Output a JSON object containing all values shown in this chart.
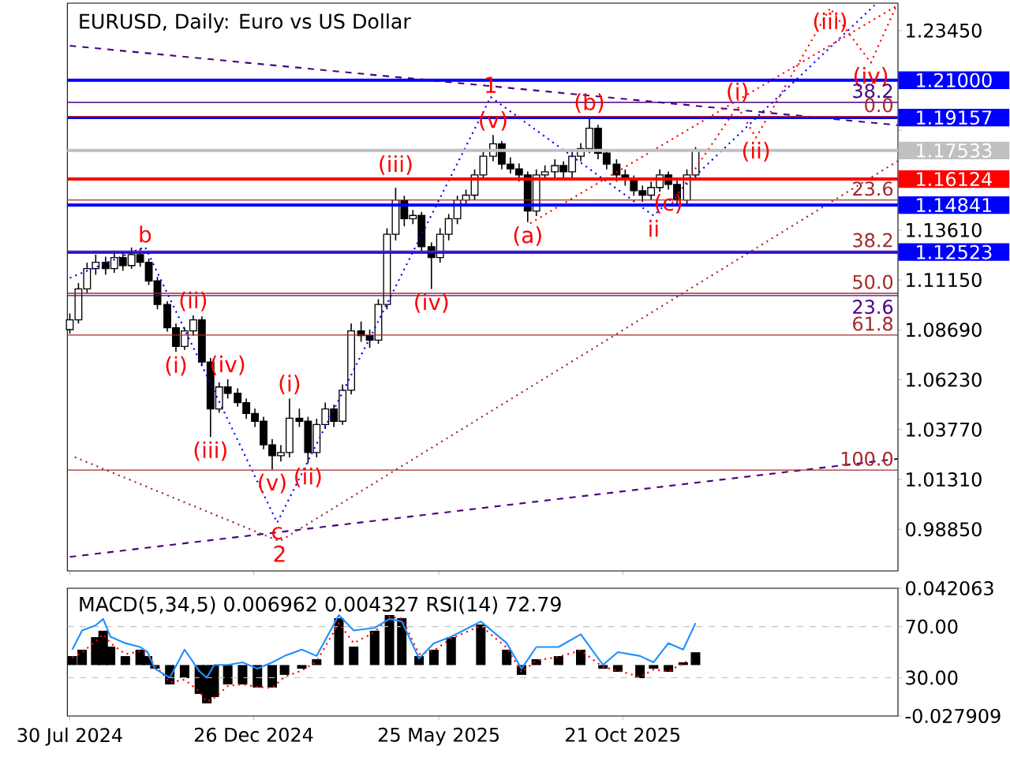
{
  "chart_data": [
    {
      "type": "candlestick",
      "title": "EURUSD, Daily:  Euro vs US Dollar",
      "color": "#000000",
      "xlim": [
        "2024-07-28",
        "2026-06-01"
      ],
      "xticks": [
        {
          "value": "2024-07-30",
          "label": null
        },
        {
          "value": "2024-12-26",
          "label": null
        },
        {
          "value": "2025-05-25",
          "label": null
        },
        {
          "value": "2025-10-21",
          "label": null
        }
      ],
      "ylim": [
        0.968,
        1.248
      ],
      "yticks": [
        {
          "value": 0.9885,
          "label": "0.98850"
        },
        {
          "value": 1.0131,
          "label": "1.01310"
        },
        {
          "value": 1.0377,
          "label": "1.03770"
        },
        {
          "value": 1.0623,
          "label": "1.06230"
        },
        {
          "value": 1.0869,
          "label": "1.08690"
        },
        {
          "value": 1.1115,
          "label": "1.11150"
        },
        {
          "value": 1.1361,
          "label": "1.13610"
        },
        {
          "value": 1.1853,
          "label": null
        },
        {
          "value": 1.2345,
          "label": "1.23450"
        }
      ],
      "tick_labels": "y",
      "x": [
        "2024-07-30",
        "2024-08-06",
        "2024-08-13",
        "2024-08-20",
        "2024-08-28",
        "2024-09-04",
        "2024-09-11",
        "2024-09-18",
        "2024-09-25",
        "2024-10-02",
        "2024-10-09",
        "2024-10-17",
        "2024-10-24",
        "2024-10-31",
        "2024-11-07",
        "2024-11-14",
        "2024-11-21",
        "2024-11-28",
        "2024-12-05",
        "2024-12-13",
        "2024-12-20",
        "2024-12-27",
        "2025-01-03",
        "2025-01-10",
        "2025-01-17",
        "2025-01-24",
        "2025-02-01",
        "2025-02-08",
        "2025-02-15",
        "2025-02-22",
        "2025-03-01",
        "2025-03-08",
        "2025-03-15",
        "2025-03-23",
        "2025-03-30",
        "2025-04-06",
        "2025-04-13",
        "2025-04-20",
        "2025-04-27",
        "2025-05-04",
        "2025-05-11",
        "2025-05-19",
        "2025-05-26",
        "2025-06-02",
        "2025-06-09",
        "2025-06-16",
        "2025-06-23",
        "2025-06-30",
        "2025-07-08",
        "2025-07-15",
        "2025-07-22",
        "2025-07-29",
        "2025-08-05",
        "2025-08-12",
        "2025-08-19",
        "2025-08-27",
        "2025-09-03",
        "2025-09-10",
        "2025-09-17",
        "2025-09-24",
        "2025-10-01",
        "2025-10-08",
        "2025-10-16",
        "2025-10-23",
        "2025-10-30",
        "2025-11-06",
        "2025-11-13",
        "2025-11-20",
        "2025-11-27",
        "2025-12-04",
        "2025-12-12",
        "2025-12-19"
      ],
      "ohlc": [
        [
          1.087,
          1.095,
          1.085,
          1.0918
        ],
        [
          1.0918,
          1.11,
          1.09,
          1.1071
        ],
        [
          1.1071,
          1.12,
          1.105,
          1.1171
        ],
        [
          1.1171,
          1.124,
          1.114,
          1.1202
        ],
        [
          1.1202,
          1.123,
          1.114,
          1.1171
        ],
        [
          1.1171,
          1.126,
          1.115,
          1.1225
        ],
        [
          1.1225,
          1.125,
          1.116,
          1.1186
        ],
        [
          1.1186,
          1.1275,
          1.117,
          1.124
        ],
        [
          1.124,
          1.127,
          1.118,
          1.1202
        ],
        [
          1.1202,
          1.122,
          1.109,
          1.111
        ],
        [
          1.111,
          1.113,
          1.097,
          1.0994
        ],
        [
          1.0994,
          1.101,
          1.086,
          1.0879
        ],
        [
          1.0879,
          1.09,
          1.076,
          1.0787
        ],
        [
          1.0787,
          1.088,
          1.077,
          1.0864
        ],
        [
          1.0864,
          1.094,
          1.084,
          1.0918
        ],
        [
          1.0918,
          1.0935,
          1.069,
          1.071
        ],
        [
          1.071,
          1.073,
          1.034,
          1.0479
        ],
        [
          1.0479,
          1.061,
          1.046,
          1.0587
        ],
        [
          1.0587,
          1.0625,
          1.053,
          1.0556
        ],
        [
          1.0556,
          1.058,
          1.049,
          1.051
        ],
        [
          1.051,
          1.053,
          1.043,
          1.0456
        ],
        [
          1.0456,
          1.048,
          1.039,
          1.0418
        ],
        [
          1.0418,
          1.044,
          1.028,
          1.0302
        ],
        [
          1.0302,
          1.033,
          1.018,
          1.0248
        ],
        [
          1.0248,
          1.03,
          1.022,
          1.0264
        ],
        [
          1.0264,
          1.053,
          1.024,
          1.0433
        ],
        [
          1.0433,
          1.048,
          1.039,
          1.0418
        ],
        [
          1.0418,
          1.044,
          1.021,
          1.0264
        ],
        [
          1.0264,
          1.043,
          1.024,
          1.0402
        ],
        [
          1.0402,
          1.051,
          1.038,
          1.0479
        ],
        [
          1.0479,
          1.05,
          1.039,
          1.0418
        ],
        [
          1.0418,
          1.06,
          1.04,
          1.0571
        ],
        [
          1.0571,
          1.09,
          1.055,
          1.0864
        ],
        [
          1.0864,
          1.091,
          1.081,
          1.084
        ],
        [
          1.084,
          1.087,
          1.078,
          1.0818
        ],
        [
          1.0818,
          1.102,
          1.08,
          1.0994
        ],
        [
          1.0994,
          1.137,
          1.097,
          1.134
        ],
        [
          1.134,
          1.157,
          1.131,
          1.1509
        ],
        [
          1.1509,
          1.153,
          1.138,
          1.1417
        ],
        [
          1.1417,
          1.146,
          1.139,
          1.1433
        ],
        [
          1.1433,
          1.145,
          1.125,
          1.1279
        ],
        [
          1.1279,
          1.13,
          1.107,
          1.1225
        ],
        [
          1.1225,
          1.137,
          1.12,
          1.134
        ],
        [
          1.134,
          1.144,
          1.131,
          1.1417
        ],
        [
          1.1417,
          1.153,
          1.139,
          1.1509
        ],
        [
          1.1509,
          1.156,
          1.148,
          1.1533
        ],
        [
          1.1533,
          1.166,
          1.151,
          1.1633
        ],
        [
          1.1633,
          1.175,
          1.161,
          1.1725
        ],
        [
          1.1725,
          1.183,
          1.17,
          1.1786
        ],
        [
          1.1786,
          1.18,
          1.166,
          1.1686
        ],
        [
          1.1686,
          1.172,
          1.164,
          1.1663
        ],
        [
          1.1663,
          1.169,
          1.16,
          1.1633
        ],
        [
          1.1633,
          1.165,
          1.14,
          1.1455
        ],
        [
          1.1455,
          1.166,
          1.143,
          1.1633
        ],
        [
          1.1633,
          1.168,
          1.161,
          1.1648
        ],
        [
          1.1648,
          1.171,
          1.162,
          1.1679
        ],
        [
          1.1679,
          1.17,
          1.161,
          1.1648
        ],
        [
          1.1648,
          1.175,
          1.162,
          1.1725
        ],
        [
          1.1725,
          1.179,
          1.17,
          1.1763
        ],
        [
          1.1763,
          1.1918,
          1.174,
          1.1863
        ],
        [
          1.1863,
          1.188,
          1.171,
          1.174
        ],
        [
          1.174,
          1.176,
          1.166,
          1.1686
        ],
        [
          1.1686,
          1.171,
          1.16,
          1.1633
        ],
        [
          1.1633,
          1.166,
          1.158,
          1.1609
        ],
        [
          1.1609,
          1.163,
          1.153,
          1.1555
        ],
        [
          1.1555,
          1.158,
          1.15,
          1.1533
        ],
        [
          1.1533,
          1.16,
          1.151,
          1.1571
        ],
        [
          1.1571,
          1.166,
          1.155,
          1.1633
        ],
        [
          1.1633,
          1.165,
          1.156,
          1.1586
        ],
        [
          1.1586,
          1.161,
          1.149,
          1.1509
        ],
        [
          1.1509,
          1.166,
          1.149,
          1.1633
        ],
        [
          1.1633,
          1.177,
          1.161,
          1.1753
        ]
      ],
      "series": [
        {
          "type": "line",
          "color": "#4b0082",
          "line_style": "dashed",
          "x": [
            "2024-07-30",
            "2026-06-01"
          ],
          "values": [
            1.227,
            1.1878
          ]
        },
        {
          "type": "line",
          "color": "#4b0082",
          "line_style": "dashed",
          "x": [
            "2024-07-30",
            "2026-06-01"
          ],
          "values": [
            0.9749,
            1.0233
          ]
        },
        {
          "type": "line",
          "color": "#a52a2a",
          "line_style": "dotted",
          "x": [
            "2024-08-03",
            "2025-01-16",
            "2026-06-01"
          ],
          "values": [
            1.0241,
            0.9826,
            1.1702
          ]
        },
        {
          "type": "line",
          "color": "#0000ff",
          "line_style": "dotted",
          "x": [
            "2024-07-30",
            "2024-09-29",
            "2025-01-14",
            "2025-07-06",
            "2025-11-15",
            "2026-05-13"
          ],
          "values": [
            1.1125,
            1.1278,
            0.9918,
            1.2017,
            1.1432,
            1.247
          ]
        },
        {
          "type": "line",
          "color": "#ff0000",
          "line_style": "dotted",
          "x": [
            "2025-11-30",
            "2026-01-22",
            "2026-02-06",
            "2026-04-07",
            "2026-05-10",
            "2026-05-31"
          ],
          "values": [
            1.1494,
            1.1971,
            1.1817,
            1.2455,
            1.2186,
            1.247
          ]
        },
        {
          "type": "line",
          "color": "#ff0000",
          "line_style": "dotted",
          "x": [
            "2025-08-07",
            "2026-06-01"
          ],
          "values": [
            1.1394,
            1.247
          ]
        }
      ],
      "ref_lines": [
        {
          "axis": "y",
          "value": 1.1991,
          "color": "#4b0082",
          "line_style": "solid"
        },
        {
          "axis": "y",
          "value": 1.1038,
          "color": "#4b0082",
          "line_style": "solid"
        },
        {
          "axis": "y",
          "value": 1.1921,
          "color": "#a52a2a",
          "line_style": "solid"
        },
        {
          "axis": "y",
          "value": 1.1509,
          "color": "#a52a2a",
          "line_style": "solid"
        },
        {
          "axis": "y",
          "value": 1.1255,
          "color": "#a52a2a",
          "line_style": "solid"
        },
        {
          "axis": "y",
          "value": 1.1049,
          "color": "#a52a2a",
          "line_style": "solid"
        },
        {
          "axis": "y",
          "value": 1.0843,
          "color": "#a52a2a",
          "line_style": "solid"
        },
        {
          "axis": "y",
          "value": 1.0177,
          "color": "#a52a2a",
          "line_style": "solid"
        },
        {
          "axis": "y",
          "value": 1.17533,
          "label": "1.17533",
          "color": "#c0c0c0"
        },
        {
          "axis": "y",
          "value": 1.21,
          "label": "1.21000",
          "color": "#0000ff"
        },
        {
          "axis": "y",
          "value": 1.19157,
          "label": "1.19157",
          "color": "#0000ff"
        },
        {
          "axis": "y",
          "value": 1.16124,
          "label": "1.16124",
          "color": "#ff0000"
        },
        {
          "axis": "y",
          "value": 1.14841,
          "label": "1.14841",
          "color": "#0000ff"
        },
        {
          "axis": "y",
          "value": 1.12523,
          "label": "1.12523",
          "color": "#0000ff"
        }
      ],
      "annotations": [
        {
          "text": "b",
          "x": "2024-09-29",
          "y": 1.1278
        },
        {
          "text": "(ii)",
          "x": "2024-11-07",
          "y": 1.094
        },
        {
          "text": "(i)",
          "x": "2024-10-24",
          "y": 1.076
        },
        {
          "text": "(iv)",
          "x": "2024-12-05",
          "y": 1.0625
        },
        {
          "text": "(iii)",
          "x": "2024-11-21",
          "y": 1.034
        },
        {
          "text": "(v)",
          "x": "2025-01-10",
          "y": 1.018
        },
        {
          "text": "c",
          "x": "2025-01-14",
          "y": 0.9918
        },
        {
          "text": "2",
          "x": "2025-01-16",
          "y": 0.9826
        },
        {
          "text": "(i)",
          "x": "2025-01-24",
          "y": 1.053
        },
        {
          "text": "(ii)",
          "x": "2025-02-08",
          "y": 1.021
        },
        {
          "text": "(iii)",
          "x": "2025-04-20",
          "y": 1.16124
        },
        {
          "text": "(iv)",
          "x": "2025-05-19",
          "y": 1.107
        },
        {
          "text": "(v)",
          "x": "2025-07-08",
          "y": 1.183
        },
        {
          "text": "1",
          "x": "2025-07-06",
          "y": 1.2017
        },
        {
          "text": "(a)",
          "x": "2025-08-05",
          "y": 1.14
        },
        {
          "text": "(b)",
          "x": "2025-09-24",
          "y": 1.1918
        },
        {
          "text": "(c)",
          "x": "2025-11-27",
          "y": 1.156
        },
        {
          "text": "ii",
          "x": "2025-11-15",
          "y": 1.1432
        },
        {
          "text": "(i)",
          "x": "2026-01-22",
          "y": 1.1971
        },
        {
          "text": "(ii)",
          "x": "2026-02-06",
          "y": 1.1817
        },
        {
          "text": "(iii)",
          "x": "2026-04-07",
          "y": 1.2455
        },
        {
          "text": "(iv)",
          "x": "2026-05-10",
          "y": 1.2186
        },
        {
          "text": "38.2",
          "x": "2026-06-01",
          "y": 1.1991
        },
        {
          "text": "23.6",
          "x": "2026-06-01",
          "y": 1.1038
        },
        {
          "text": "0.0",
          "x": "2026-06-01",
          "y": 1.1921
        },
        {
          "text": "23.6",
          "x": "2026-06-01",
          "y": 1.1509
        },
        {
          "text": "38.2",
          "x": "2026-06-01",
          "y": 1.1255
        },
        {
          "text": "50.0",
          "x": "2026-06-01",
          "y": 1.1049
        },
        {
          "text": "61.8",
          "x": "2026-06-01",
          "y": 1.0843
        },
        {
          "text": "100.0",
          "x": "2026-06-01",
          "y": 1.0177
        }
      ]
    },
    {
      "type": "bar",
      "title": "MACD(5,34,5) 0.006962 0.004327 RSI(14) 72.79",
      "xlim": [
        "2024-07-28",
        "2026-06-01"
      ],
      "xticks": [
        {
          "value": "2024-07-30",
          "label": "30 Jul 2024"
        },
        {
          "value": "2024-12-26",
          "label": "26 Dec 2024"
        },
        {
          "value": "2025-05-25",
          "label": "25 May 2025"
        },
        {
          "value": "2025-10-21",
          "label": "21 Oct 2025"
        }
      ],
      "ylim": [
        -0.027909,
        0.042063
      ],
      "yticks": [
        -0.027909,
        0.042063
      ],
      "y2lim": [
        0,
        100
      ],
      "y2ticks": [
        {
          "value": 30,
          "label": "30.00"
        },
        {
          "value": 70,
          "label": "70.00"
        }
      ],
      "x": [
        "2024-08-01",
        "2024-08-09",
        "2024-08-20",
        "2024-08-26",
        "2024-09-01",
        "2024-09-13",
        "2024-09-25",
        "2024-10-01",
        "2024-10-07",
        "2024-10-19",
        "2024-10-31",
        "2024-11-12",
        "2024-11-18",
        "2024-11-24",
        "2024-12-05",
        "2024-12-17",
        "2024-12-29",
        "2025-01-10",
        "2025-01-20",
        "2025-02-03",
        "2025-02-15",
        "2025-03-05",
        "2025-03-17",
        "2025-04-03",
        "2025-04-15",
        "2025-04-25",
        "2025-05-09",
        "2025-05-21",
        "2025-06-04",
        "2025-06-28",
        "2025-07-19",
        "2025-07-31",
        "2025-08-12",
        "2025-08-30",
        "2025-09-17",
        "2025-10-05",
        "2025-10-17",
        "2025-11-04",
        "2025-11-15",
        "2025-11-27",
        "2025-12-09",
        "2025-12-19"
      ],
      "series": [
        {
          "type": "bar",
          "color": "#000000",
          "values": [
            0.0049,
            0.0084,
            0.0153,
            0.0188,
            0.0101,
            0.0049,
            0.0084,
            0.0049,
            -0.002,
            -0.0106,
            -0.0072,
            -0.0158,
            -0.021,
            -0.0175,
            -0.0106,
            -0.0106,
            -0.0123,
            -0.0123,
            -0.0054,
            -0.002,
            0.0032,
            0.0257,
            0.0101,
            0.0188,
            0.0274,
            0.0257,
            0.0049,
            0.0084,
            0.0153,
            0.0222,
            0.0084,
            -0.0054,
            0.0032,
            0.0049,
            0.0084,
            -0.002,
            -0.0037,
            -0.0072,
            -0.002,
            -0.0037,
            0.0015,
            0.007
          ]
        },
        {
          "type": "line",
          "color": "#ff0000",
          "line_style": "dotted",
          "values": [
            0.004,
            0.007,
            0.013,
            0.017,
            0.012,
            0.006,
            0.0075,
            0.0055,
            0.0,
            -0.0095,
            -0.008,
            -0.0145,
            -0.02,
            -0.018,
            -0.0115,
            -0.0105,
            -0.012,
            -0.0125,
            -0.0065,
            -0.003,
            0.002,
            0.023,
            0.012,
            0.018,
            0.0265,
            0.0255,
            0.006,
            0.008,
            0.0145,
            0.0215,
            0.0095,
            -0.004,
            0.0025,
            0.0045,
            0.008,
            -0.001,
            -0.003,
            -0.0065,
            -0.0025,
            -0.0035,
            0.001,
            0.0043
          ]
        },
        {
          "type": "line",
          "color": "#1e90ff",
          "line_style": "solid",
          "axis": "y2",
          "values": [
            52,
            67,
            71,
            76,
            62,
            57,
            54,
            50,
            37,
            30,
            52,
            35,
            30,
            40,
            40,
            42,
            37,
            42,
            47,
            52,
            47,
            79,
            67,
            69,
            76,
            74,
            45,
            57,
            62,
            74,
            57,
            37,
            54,
            54,
            64,
            40,
            50,
            47,
            42,
            57,
            52,
            72.79
          ]
        }
      ],
      "ref_lines": [
        {
          "axis": "y2",
          "value": 70,
          "color": "#c0c0c0",
          "line_style": "dashed"
        },
        {
          "axis": "y2",
          "value": 30,
          "color": "#c0c0c0",
          "line_style": "dashed"
        }
      ]
    }
  ]
}
